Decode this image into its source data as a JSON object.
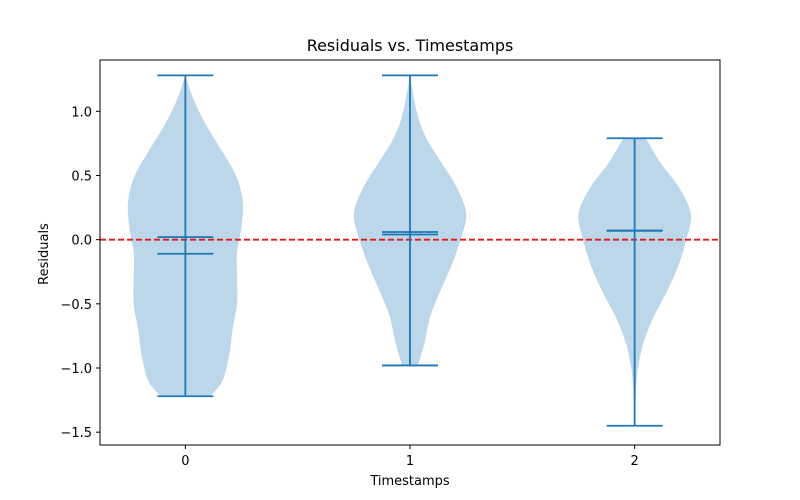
{
  "chart_data": {
    "type": "violin",
    "title": "Residuals vs. Timestamps",
    "xlabel": "Timestamps",
    "ylabel": "Residuals",
    "xlim": [
      -0.38,
      2.38
    ],
    "ylim": [
      -1.6,
      1.4
    ],
    "x_ticks": [
      0,
      1,
      2
    ],
    "x_tick_labels": [
      "0",
      "1",
      "2"
    ],
    "y_ticks": [
      1.0,
      0.5,
      0.0,
      -0.5,
      -1.0,
      -1.5
    ],
    "y_tick_labels": [
      "1.0",
      "0.5",
      "0.0",
      "−0.5",
      "−1.0",
      "−1.5"
    ],
    "grid": false,
    "legend": "none",
    "colors": {
      "violin_fill": "#bcd6ea",
      "violin_line": "#1f77b4",
      "reference_line": "#e31a1c"
    },
    "reference_line": {
      "y": 0.0,
      "style": "dashed"
    },
    "series": [
      {
        "x": 0,
        "min": -1.22,
        "max": 1.28,
        "mean": 0.02,
        "median": -0.11,
        "density": [
          [
            -1.22,
            0.22
          ],
          [
            -1.1,
            0.33
          ],
          [
            -0.9,
            0.39
          ],
          [
            -0.7,
            0.42
          ],
          [
            -0.5,
            0.46
          ],
          [
            -0.3,
            0.46
          ],
          [
            -0.1,
            0.46
          ],
          [
            0.1,
            0.5
          ],
          [
            0.3,
            0.51
          ],
          [
            0.5,
            0.45
          ],
          [
            0.7,
            0.32
          ],
          [
            0.9,
            0.18
          ],
          [
            1.1,
            0.07
          ],
          [
            1.28,
            0.0
          ]
        ]
      },
      {
        "x": 1,
        "min": -0.98,
        "max": 1.28,
        "mean": 0.06,
        "median": 0.04,
        "density": [
          [
            -0.98,
            0.07
          ],
          [
            -0.8,
            0.13
          ],
          [
            -0.6,
            0.18
          ],
          [
            -0.4,
            0.27
          ],
          [
            -0.2,
            0.37
          ],
          [
            0.0,
            0.45
          ],
          [
            0.2,
            0.5
          ],
          [
            0.4,
            0.42
          ],
          [
            0.6,
            0.28
          ],
          [
            0.8,
            0.14
          ],
          [
            1.0,
            0.06
          ],
          [
            1.28,
            0.0
          ]
        ]
      },
      {
        "x": 2,
        "min": -1.45,
        "max": 0.79,
        "mean": 0.07,
        "median": 0.07,
        "density": [
          [
            -1.45,
            0.0
          ],
          [
            -1.2,
            0.01
          ],
          [
            -1.0,
            0.03
          ],
          [
            -0.8,
            0.08
          ],
          [
            -0.6,
            0.17
          ],
          [
            -0.4,
            0.29
          ],
          [
            -0.2,
            0.39
          ],
          [
            0.0,
            0.46
          ],
          [
            0.2,
            0.5
          ],
          [
            0.4,
            0.4
          ],
          [
            0.6,
            0.23
          ],
          [
            0.79,
            0.1
          ]
        ]
      }
    ]
  }
}
